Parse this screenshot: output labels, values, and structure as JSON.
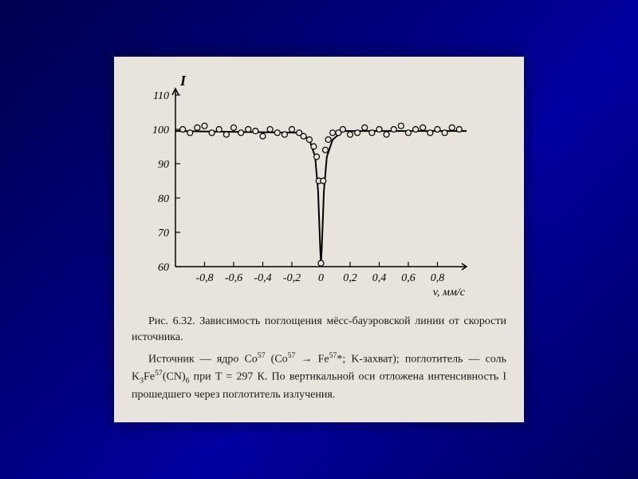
{
  "figure": {
    "type": "scatter-line",
    "ylabel": "I",
    "xlabel": "v, мм/с",
    "ylim": [
      60,
      110
    ],
    "xlim": [
      -1.0,
      1.0
    ],
    "yticks": [
      60,
      70,
      80,
      90,
      100,
      110
    ],
    "ytick_labels": [
      "60",
      "70",
      "80",
      "90",
      "100",
      "110"
    ],
    "xticks": [
      -0.8,
      -0.6,
      -0.4,
      -0.2,
      0,
      0.2,
      0.4,
      0.6,
      0.8
    ],
    "xtick_labels": [
      "-0,8",
      "-0,6",
      "-0,4",
      "-0,2",
      "0",
      "0,2",
      "0,4",
      "0,6",
      "0,8"
    ],
    "axis_color": "#000000",
    "line_color": "#000000",
    "line_width": 2,
    "marker_color": "#000000",
    "marker_fill": "#e8e4dc",
    "marker_radius": 3.5,
    "background_color": "#e8e4dc",
    "tick_fontsize": 14,
    "label_fontsize": 18,
    "data_points": [
      {
        "x": -0.95,
        "y": 100
      },
      {
        "x": -0.9,
        "y": 99
      },
      {
        "x": -0.85,
        "y": 100.5
      },
      {
        "x": -0.8,
        "y": 101
      },
      {
        "x": -0.75,
        "y": 99
      },
      {
        "x": -0.7,
        "y": 100
      },
      {
        "x": -0.65,
        "y": 98.5
      },
      {
        "x": -0.6,
        "y": 100.5
      },
      {
        "x": -0.55,
        "y": 99
      },
      {
        "x": -0.5,
        "y": 100
      },
      {
        "x": -0.45,
        "y": 99.5
      },
      {
        "x": -0.4,
        "y": 98
      },
      {
        "x": -0.35,
        "y": 100
      },
      {
        "x": -0.3,
        "y": 99
      },
      {
        "x": -0.25,
        "y": 98.5
      },
      {
        "x": -0.2,
        "y": 100
      },
      {
        "x": -0.15,
        "y": 99
      },
      {
        "x": -0.12,
        "y": 98
      },
      {
        "x": -0.08,
        "y": 97
      },
      {
        "x": -0.05,
        "y": 95
      },
      {
        "x": -0.03,
        "y": 92
      },
      {
        "x": -0.015,
        "y": 85
      },
      {
        "x": 0.0,
        "y": 61
      },
      {
        "x": 0.015,
        "y": 85
      },
      {
        "x": 0.03,
        "y": 94
      },
      {
        "x": 0.05,
        "y": 97
      },
      {
        "x": 0.08,
        "y": 99
      },
      {
        "x": 0.12,
        "y": 99
      },
      {
        "x": 0.15,
        "y": 100
      },
      {
        "x": 0.2,
        "y": 98.5
      },
      {
        "x": 0.25,
        "y": 99
      },
      {
        "x": 0.3,
        "y": 100.5
      },
      {
        "x": 0.35,
        "y": 99
      },
      {
        "x": 0.4,
        "y": 100
      },
      {
        "x": 0.45,
        "y": 98.5
      },
      {
        "x": 0.5,
        "y": 100
      },
      {
        "x": 0.55,
        "y": 101
      },
      {
        "x": 0.6,
        "y": 99
      },
      {
        "x": 0.65,
        "y": 100
      },
      {
        "x": 0.7,
        "y": 100.5
      },
      {
        "x": 0.75,
        "y": 99
      },
      {
        "x": 0.8,
        "y": 100
      },
      {
        "x": 0.85,
        "y": 99
      },
      {
        "x": 0.9,
        "y": 100.5
      },
      {
        "x": 0.95,
        "y": 100
      }
    ],
    "fit_line": [
      {
        "x": -1.0,
        "y": 99.5
      },
      {
        "x": -0.15,
        "y": 99
      },
      {
        "x": -0.08,
        "y": 97
      },
      {
        "x": -0.04,
        "y": 92
      },
      {
        "x": -0.02,
        "y": 82
      },
      {
        "x": -0.005,
        "y": 65
      },
      {
        "x": 0.0,
        "y": 61
      },
      {
        "x": 0.005,
        "y": 65
      },
      {
        "x": 0.02,
        "y": 82
      },
      {
        "x": 0.04,
        "y": 92
      },
      {
        "x": 0.08,
        "y": 97
      },
      {
        "x": 0.15,
        "y": 99.5
      },
      {
        "x": 1.0,
        "y": 99.5
      }
    ]
  },
  "caption": {
    "line1": "Рис. 6.32. Зависимость поглощения мёсс-бауэровской линии от скорости источника.",
    "line2_pre": "Источник — ядро Co",
    "line2_mid": " (Co",
    "line2_arrow": " → Fe",
    "line2_post": "*; K-захват); поглотитель — соль K",
    "line2_salt": "Fe",
    "line2_cn": "(CN)",
    "line2_temp": " при T = 297 К. По вертикальной оси отложена интенсивность I прошедшего через поглотитель излучения.",
    "sup57": "57",
    "sub3": "3",
    "sub6": "6"
  }
}
